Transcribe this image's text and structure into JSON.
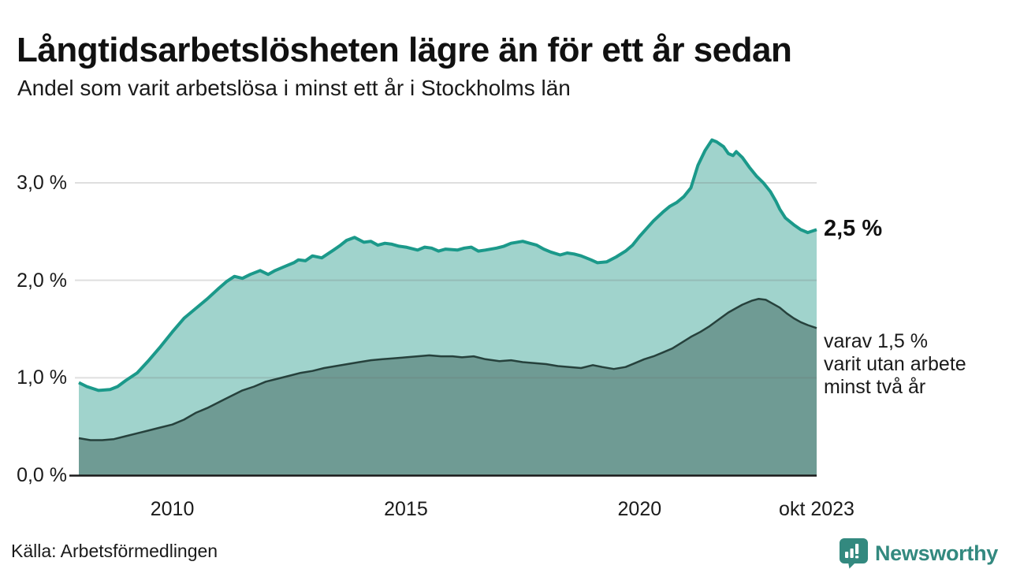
{
  "header": {
    "title": "Långtidsarbetslösheten lägre än för ett år sedan",
    "subtitle": "Andel som varit arbetslösa i minst ett år i Stockholms län"
  },
  "colors": {
    "total_line": "#1b998a",
    "total_fill": "#a0d3cc",
    "twoyear_line": "#26413c",
    "twoyear_fill": "#6f9b94",
    "gridline": "rgba(110,110,110,0.22)",
    "axis": "#1a1a1a",
    "brand_teal": "#33897f"
  },
  "chart_data": {
    "type": "area",
    "title": "Långtidsarbetslösheten lägre än för ett år sedan",
    "subtitle": "Andel som varit arbetslösa i minst ett år i Stockholms län",
    "unit": "%",
    "x_axis": {
      "range": [
        2008.0,
        2023.79
      ],
      "ticks": [
        {
          "t": 2010,
          "label": "2010"
        },
        {
          "t": 2015,
          "label": "2015"
        },
        {
          "t": 2020,
          "label": "2020"
        },
        {
          "t": 2023.79,
          "label": "okt 2023"
        }
      ]
    },
    "y_axis": {
      "range": [
        0,
        3.6
      ],
      "ticks": [
        {
          "v": 0,
          "label": "0,0 %"
        },
        {
          "v": 1,
          "label": "1,0 %"
        },
        {
          "v": 2,
          "label": "2,0 %"
        },
        {
          "v": 3,
          "label": "3,0 %"
        }
      ]
    },
    "legend_position": "none",
    "grid": true,
    "series": [
      {
        "name": "Andel som varit arbetslösa minst ett år",
        "points": [
          [
            2008.0,
            0.95
          ],
          [
            2008.17,
            0.91
          ],
          [
            2008.42,
            0.87
          ],
          [
            2008.67,
            0.88
          ],
          [
            2008.83,
            0.91
          ],
          [
            2009.0,
            0.97
          ],
          [
            2009.25,
            1.05
          ],
          [
            2009.5,
            1.18
          ],
          [
            2009.75,
            1.32
          ],
          [
            2010.0,
            1.47
          ],
          [
            2010.25,
            1.61
          ],
          [
            2010.5,
            1.71
          ],
          [
            2010.75,
            1.81
          ],
          [
            2011.0,
            1.92
          ],
          [
            2011.17,
            1.99
          ],
          [
            2011.33,
            2.04
          ],
          [
            2011.5,
            2.02
          ],
          [
            2011.67,
            2.06
          ],
          [
            2011.88,
            2.1
          ],
          [
            2012.05,
            2.06
          ],
          [
            2012.2,
            2.1
          ],
          [
            2012.4,
            2.14
          ],
          [
            2012.6,
            2.18
          ],
          [
            2012.7,
            2.21
          ],
          [
            2012.85,
            2.2
          ],
          [
            2013.0,
            2.25
          ],
          [
            2013.2,
            2.23
          ],
          [
            2013.45,
            2.31
          ],
          [
            2013.6,
            2.36
          ],
          [
            2013.73,
            2.41
          ],
          [
            2013.9,
            2.44
          ],
          [
            2014.1,
            2.39
          ],
          [
            2014.25,
            2.4
          ],
          [
            2014.4,
            2.36
          ],
          [
            2014.55,
            2.38
          ],
          [
            2014.7,
            2.37
          ],
          [
            2014.85,
            2.35
          ],
          [
            2015.0,
            2.34
          ],
          [
            2015.25,
            2.31
          ],
          [
            2015.4,
            2.34
          ],
          [
            2015.55,
            2.33
          ],
          [
            2015.7,
            2.3
          ],
          [
            2015.85,
            2.32
          ],
          [
            2016.1,
            2.31
          ],
          [
            2016.25,
            2.33
          ],
          [
            2016.4,
            2.34
          ],
          [
            2016.55,
            2.3
          ],
          [
            2016.7,
            2.31
          ],
          [
            2016.94,
            2.33
          ],
          [
            2017.1,
            2.35
          ],
          [
            2017.25,
            2.38
          ],
          [
            2017.5,
            2.4
          ],
          [
            2017.65,
            2.38
          ],
          [
            2017.8,
            2.36
          ],
          [
            2017.95,
            2.32
          ],
          [
            2018.1,
            2.29
          ],
          [
            2018.3,
            2.26
          ],
          [
            2018.45,
            2.28
          ],
          [
            2018.6,
            2.27
          ],
          [
            2018.75,
            2.25
          ],
          [
            2018.96,
            2.21
          ],
          [
            2019.1,
            2.18
          ],
          [
            2019.3,
            2.19
          ],
          [
            2019.5,
            2.24
          ],
          [
            2019.7,
            2.3
          ],
          [
            2019.85,
            2.36
          ],
          [
            2020.0,
            2.45
          ],
          [
            2020.15,
            2.53
          ],
          [
            2020.3,
            2.61
          ],
          [
            2020.5,
            2.7
          ],
          [
            2020.65,
            2.76
          ],
          [
            2020.8,
            2.8
          ],
          [
            2020.95,
            2.86
          ],
          [
            2021.1,
            2.95
          ],
          [
            2021.25,
            3.18
          ],
          [
            2021.4,
            3.33
          ],
          [
            2021.55,
            3.44
          ],
          [
            2021.65,
            3.42
          ],
          [
            2021.8,
            3.37
          ],
          [
            2021.9,
            3.3
          ],
          [
            2022.0,
            3.28
          ],
          [
            2022.07,
            3.32
          ],
          [
            2022.2,
            3.26
          ],
          [
            2022.35,
            3.16
          ],
          [
            2022.5,
            3.07
          ],
          [
            2022.65,
            3.0
          ],
          [
            2022.8,
            2.91
          ],
          [
            2022.92,
            2.81
          ],
          [
            2023.0,
            2.73
          ],
          [
            2023.12,
            2.64
          ],
          [
            2023.3,
            2.57
          ],
          [
            2023.45,
            2.52
          ],
          [
            2023.6,
            2.49
          ],
          [
            2023.79,
            2.52
          ]
        ]
      },
      {
        "name": "varav utan arbete minst två år",
        "points": [
          [
            2008.0,
            0.38
          ],
          [
            2008.25,
            0.36
          ],
          [
            2008.5,
            0.36
          ],
          [
            2008.75,
            0.37
          ],
          [
            2009.0,
            0.4
          ],
          [
            2009.25,
            0.43
          ],
          [
            2009.5,
            0.46
          ],
          [
            2009.75,
            0.49
          ],
          [
            2010.0,
            0.52
          ],
          [
            2010.25,
            0.57
          ],
          [
            2010.5,
            0.64
          ],
          [
            2010.75,
            0.69
          ],
          [
            2011.0,
            0.75
          ],
          [
            2011.25,
            0.81
          ],
          [
            2011.5,
            0.87
          ],
          [
            2011.75,
            0.91
          ],
          [
            2012.0,
            0.96
          ],
          [
            2012.25,
            0.99
          ],
          [
            2012.5,
            1.02
          ],
          [
            2012.75,
            1.05
          ],
          [
            2013.0,
            1.07
          ],
          [
            2013.25,
            1.1
          ],
          [
            2013.5,
            1.12
          ],
          [
            2013.75,
            1.14
          ],
          [
            2014.0,
            1.16
          ],
          [
            2014.25,
            1.18
          ],
          [
            2014.5,
            1.19
          ],
          [
            2014.75,
            1.2
          ],
          [
            2015.0,
            1.21
          ],
          [
            2015.25,
            1.22
          ],
          [
            2015.5,
            1.23
          ],
          [
            2015.75,
            1.22
          ],
          [
            2016.0,
            1.22
          ],
          [
            2016.2,
            1.21
          ],
          [
            2016.45,
            1.22
          ],
          [
            2016.7,
            1.19
          ],
          [
            2017.0,
            1.17
          ],
          [
            2017.25,
            1.18
          ],
          [
            2017.5,
            1.16
          ],
          [
            2017.75,
            1.15
          ],
          [
            2018.0,
            1.14
          ],
          [
            2018.25,
            1.12
          ],
          [
            2018.5,
            1.11
          ],
          [
            2018.75,
            1.1
          ],
          [
            2019.0,
            1.13
          ],
          [
            2019.2,
            1.11
          ],
          [
            2019.45,
            1.09
          ],
          [
            2019.7,
            1.11
          ],
          [
            2019.9,
            1.15
          ],
          [
            2020.1,
            1.19
          ],
          [
            2020.3,
            1.22
          ],
          [
            2020.5,
            1.26
          ],
          [
            2020.7,
            1.3
          ],
          [
            2020.9,
            1.36
          ],
          [
            2021.1,
            1.42
          ],
          [
            2021.3,
            1.47
          ],
          [
            2021.5,
            1.53
          ],
          [
            2021.7,
            1.6
          ],
          [
            2021.9,
            1.67
          ],
          [
            2022.05,
            1.71
          ],
          [
            2022.2,
            1.75
          ],
          [
            2022.4,
            1.79
          ],
          [
            2022.55,
            1.81
          ],
          [
            2022.7,
            1.8
          ],
          [
            2022.85,
            1.76
          ],
          [
            2023.0,
            1.72
          ],
          [
            2023.15,
            1.66
          ],
          [
            2023.3,
            1.61
          ],
          [
            2023.45,
            1.57
          ],
          [
            2023.6,
            1.54
          ],
          [
            2023.79,
            1.51
          ]
        ]
      }
    ],
    "annotations": {
      "latest_total": "2,5 %",
      "subset_note": "varav 1,5 %\nvarit utan arbete\nminst två år"
    }
  },
  "footer": {
    "source": "Källa: Arbetsförmedlingen",
    "brand": "Newsworthy"
  }
}
